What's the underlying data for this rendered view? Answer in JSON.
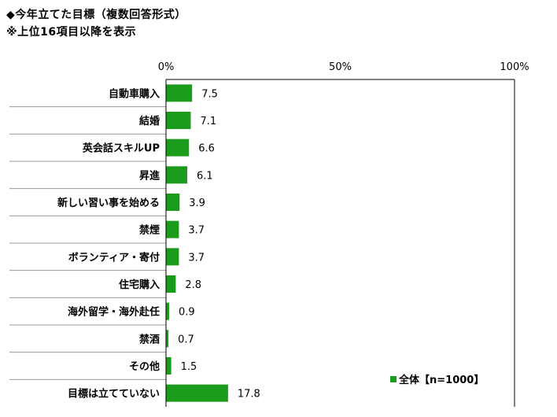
{
  "header": {
    "title": "◆今年立てた目標（複数回答形式）",
    "subtitle": "※上位16項目以降を表示"
  },
  "colors": {
    "bar": "#1b9a1b",
    "axis": "#000000",
    "separator": "#999999"
  },
  "chart_data": {
    "type": "bar",
    "orientation": "horizontal",
    "xlim": [
      0,
      100
    ],
    "ticks": [
      "0%",
      "50%",
      "100%"
    ],
    "tick_values": [
      0,
      50,
      100
    ],
    "categories": [
      "自動車購入",
      "結婚",
      "英会話スキルUP",
      "昇進",
      "新しい習い事を始める",
      "禁煙",
      "ボランティア・寄付",
      "住宅購入",
      "海外留学・海外赴任",
      "禁酒",
      "その他",
      "目標は立てていない"
    ],
    "values": [
      7.5,
      7.1,
      6.6,
      6.1,
      3.9,
      3.7,
      3.7,
      2.8,
      0.9,
      0.7,
      1.5,
      17.8
    ],
    "value_labels": [
      "7.5",
      "7.1",
      "6.6",
      "6.1",
      "3.9",
      "3.7",
      "3.7",
      "2.8",
      "0.9",
      "0.7",
      "1.5",
      "17.8"
    ],
    "series": [
      {
        "name": "全体【n=1000】"
      }
    ],
    "legend_position": "bottom-right",
    "grid": false
  }
}
